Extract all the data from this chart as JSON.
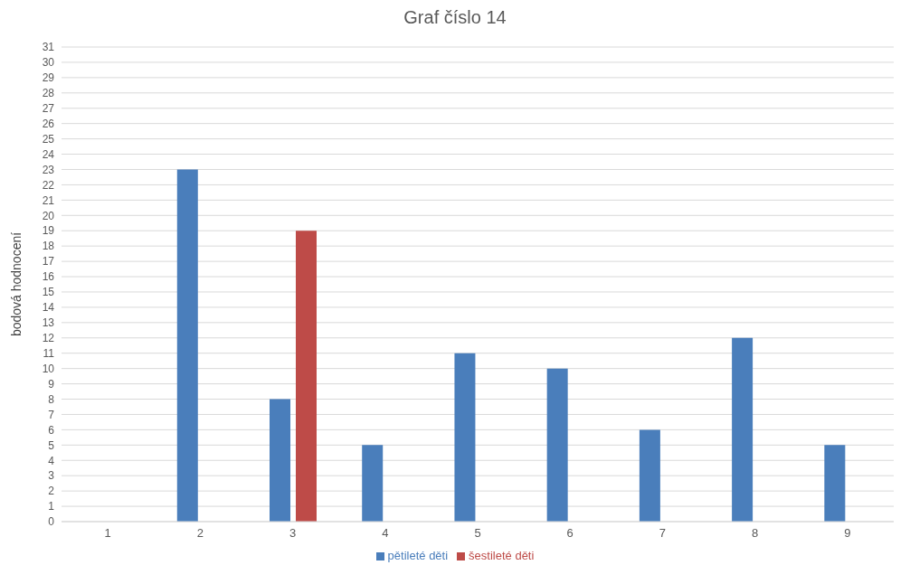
{
  "chart_data": {
    "type": "bar",
    "title": "Graf číslo 14",
    "ylabel": "bodová hodnocení",
    "categories": [
      "1",
      "2",
      "3",
      "4",
      "5",
      "6",
      "7",
      "8",
      "9"
    ],
    "series": [
      {
        "name": "pětileté děti",
        "color": "#4a7ebb",
        "values": [
          null,
          23,
          8,
          5,
          11,
          10,
          6,
          12,
          5
        ]
      },
      {
        "name": "šestileté děti",
        "color": "#be4b48",
        "values": [
          null,
          null,
          19,
          null,
          null,
          null,
          null,
          null,
          null
        ]
      }
    ],
    "ylim": [
      0,
      31
    ],
    "yticks": [
      0,
      1,
      2,
      3,
      4,
      5,
      6,
      7,
      8,
      9,
      10,
      11,
      12,
      13,
      14,
      15,
      16,
      17,
      18,
      19,
      20,
      21,
      22,
      23,
      24,
      25,
      26,
      27,
      28,
      29,
      30,
      31
    ],
    "grid": "y",
    "legend": "bottom"
  }
}
